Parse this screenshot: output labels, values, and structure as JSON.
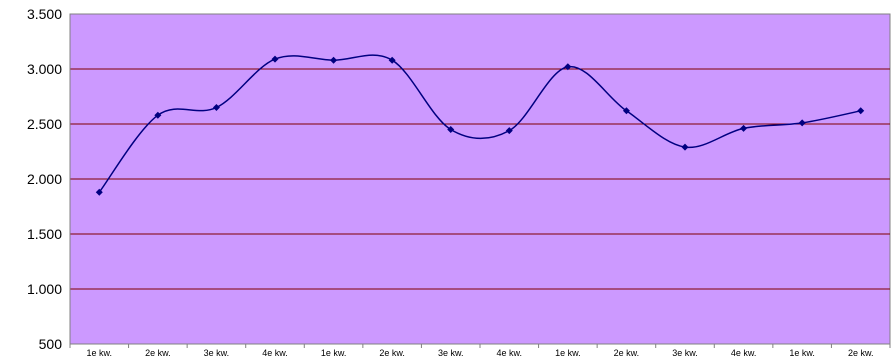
{
  "chart_data": {
    "type": "line",
    "categories": [
      "1e kw.",
      "2e kw.",
      "3e kw.",
      "4e kw.",
      "1e kw.",
      "2e kw.",
      "3e kw.",
      "4e kw.",
      "1e kw.",
      "2e kw.",
      "3e kw.",
      "4e kw.",
      "1e kw.",
      "2e kw."
    ],
    "series": [
      {
        "values": [
          1880,
          2580,
          2650,
          3090,
          3080,
          3080,
          2450,
          2440,
          3020,
          2620,
          2290,
          2460,
          2510,
          2620
        ]
      }
    ],
    "yticks": [
      "3.500",
      "3.000",
      "2.500",
      "2.000",
      "1.500",
      "1.000",
      "500"
    ],
    "ylim": [
      500,
      3500
    ],
    "grid": true,
    "colors": {
      "plot_area": "#cc99ff",
      "line": "#000080",
      "gridline": "#800000"
    }
  }
}
